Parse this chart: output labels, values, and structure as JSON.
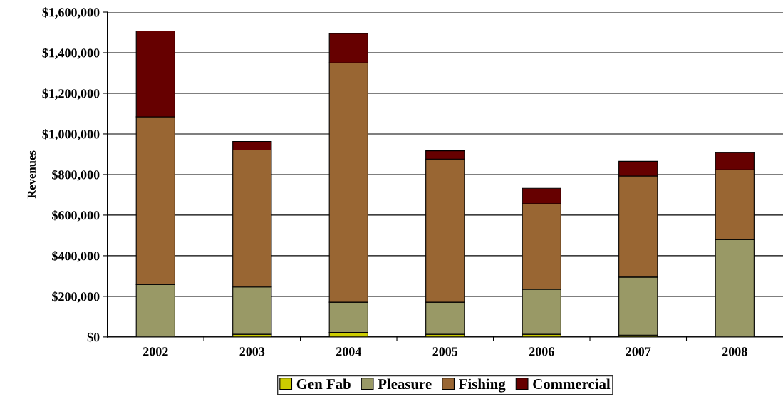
{
  "chart_data": {
    "type": "bar",
    "stacked": true,
    "ylabel": "Revenues",
    "categories": [
      "2002",
      "2003",
      "2004",
      "2005",
      "2006",
      "2007",
      "2008"
    ],
    "series": [
      {
        "name": "Gen Fab",
        "color": "#cccc00",
        "values": [
          null,
          13000,
          22000,
          13000,
          13000,
          9000,
          null
        ]
      },
      {
        "name": "Pleasure",
        "color": "#999966",
        "values": [
          259000,
          233000,
          149000,
          158000,
          222000,
          286000,
          480000
        ]
      },
      {
        "name": "Fishing",
        "color": "#996633",
        "values": [
          825000,
          675000,
          1179000,
          705000,
          421000,
          498000,
          343000
        ]
      },
      {
        "name": "Commercial",
        "color": "#660000",
        "values": [
          423000,
          42000,
          145000,
          41000,
          76000,
          72000,
          85000
        ]
      }
    ],
    "ylim": [
      0,
      1600000
    ],
    "yticks": [
      {
        "value": 0,
        "label": "$0"
      },
      {
        "value": 200000,
        "label": "$200,000"
      },
      {
        "value": 400000,
        "label": "$400,000"
      },
      {
        "value": 600000,
        "label": "$600,000"
      },
      {
        "value": 800000,
        "label": "$800,000"
      },
      {
        "value": 1000000,
        "label": "$1,000,000"
      },
      {
        "value": 1200000,
        "label": "$1,200,000"
      },
      {
        "value": 1400000,
        "label": "$1,400,000"
      },
      {
        "value": 1600000,
        "label": "$1,600,000"
      }
    ],
    "grid": "y",
    "legend": "bottom"
  }
}
